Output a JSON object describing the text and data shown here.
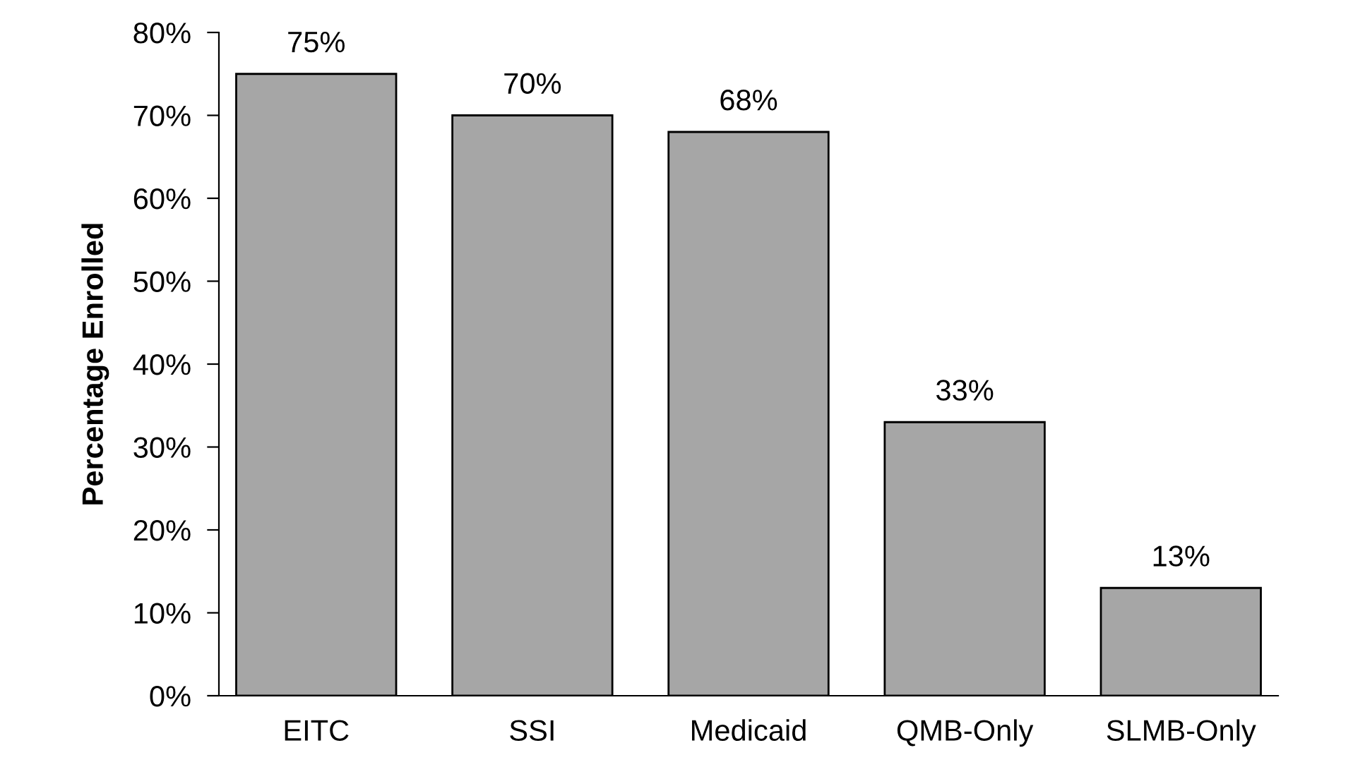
{
  "chart_data": {
    "type": "bar",
    "ylabel": "Percentage Enrolled",
    "categories": [
      "EITC",
      "SSI",
      "Medicaid",
      "QMB-Only",
      "SLMB-Only"
    ],
    "values": [
      75,
      70,
      68,
      33,
      13
    ],
    "value_labels": [
      "75%",
      "70%",
      "68%",
      "33%",
      "13%"
    ],
    "color": "#a6a6a6",
    "ylim": [
      0,
      80
    ],
    "yticks": [
      {
        "value": 0,
        "label": "0%"
      },
      {
        "value": 10,
        "label": "10%"
      },
      {
        "value": 20,
        "label": "20%"
      },
      {
        "value": 30,
        "label": "30%"
      },
      {
        "value": 40,
        "label": "40%"
      },
      {
        "value": 50,
        "label": "50%"
      },
      {
        "value": 60,
        "label": "60%"
      },
      {
        "value": 70,
        "label": "70%"
      },
      {
        "value": 80,
        "label": "80%"
      }
    ],
    "grid": false
  }
}
